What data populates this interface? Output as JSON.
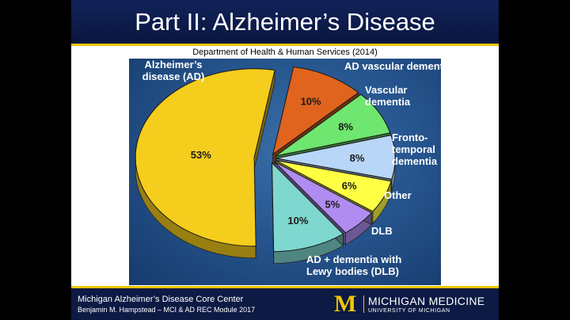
{
  "slide": {
    "title": "Part II: Alzheimer’s Disease",
    "source": "Department of Health & Human Services (2014)",
    "footer": {
      "line1": "Michigan Alzheimer’s Disease Core Center",
      "line2": "Benjamin M. Hampstead – MCI & AD REC Module 2017"
    },
    "logo": {
      "mark": "M",
      "name": "MICHIGAN MEDICINE",
      "sub": "UNIVERSITY OF MICHIGAN"
    }
  },
  "chart_data": {
    "type": "pie",
    "title": "",
    "slices": [
      {
        "name": "AD vascular dementia",
        "label_lines": [
          "AD vascular dementia"
        ],
        "value": 10,
        "value_label": "10%",
        "color": "#e0641e"
      },
      {
        "name": "Vascular dementia",
        "label_lines": [
          "Vascular",
          "dementia"
        ],
        "value": 8,
        "value_label": "8%",
        "color": "#6fe66f"
      },
      {
        "name": "Fronto-temporal dementia",
        "label_lines": [
          "Fronto-",
          "temporal",
          "dementia"
        ],
        "value": 8,
        "value_label": "8%",
        "color": "#b8d6f7"
      },
      {
        "name": "Other",
        "label_lines": [
          "Other"
        ],
        "value": 6,
        "value_label": "6%",
        "color": "#ffff44"
      },
      {
        "name": "DLB",
        "label_lines": [
          "DLB"
        ],
        "value": 5,
        "value_label": "5%",
        "color": "#b08cf0"
      },
      {
        "name": "AD + dementia with Lewy bodies (DLB)",
        "label_lines": [
          "AD + dementia with",
          "Lewy bodies (DLB)"
        ],
        "value": 10,
        "value_label": "10%",
        "color": "#7fd8d0"
      },
      {
        "name": "Alzheimer’s disease (AD)",
        "label_lines": [
          "Alzheimer’s",
          "disease (AD)"
        ],
        "value": 53,
        "value_label": "53%",
        "color": "#f5cd1d"
      }
    ],
    "legend": "none"
  }
}
